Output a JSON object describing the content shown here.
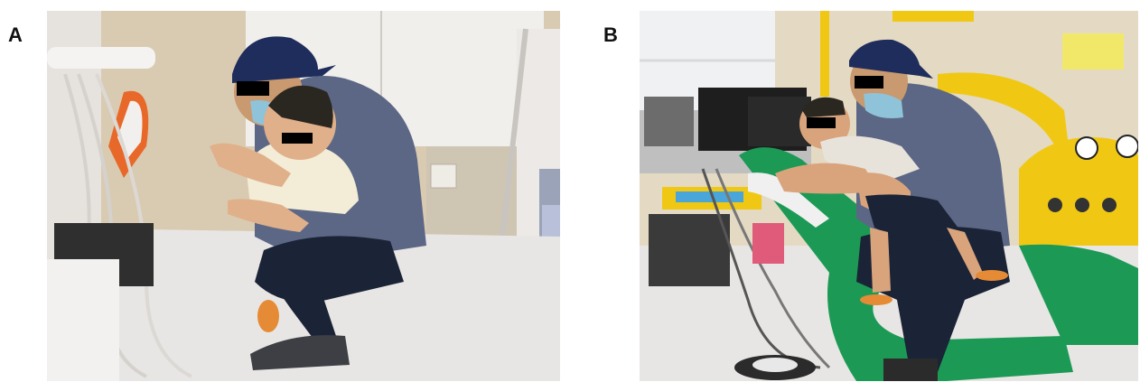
{
  "figure": {
    "panels": [
      {
        "label": "A",
        "photo_icon": "photo-father-hugging-child-icon"
      },
      {
        "label": "B",
        "photo_icon": "photo-father-child-dental-chair-icon"
      }
    ]
  },
  "colors": {
    "cap": "#1f2d5c",
    "shirt": "#5c6785",
    "jeans": "#1b2336",
    "mask": "#8fc3d9",
    "dental_chair_green": "#1c9a55",
    "dental_chair_yellow": "#f0c814",
    "wall_beige": "#d9cbb2",
    "floor": "#e8e6e4"
  }
}
